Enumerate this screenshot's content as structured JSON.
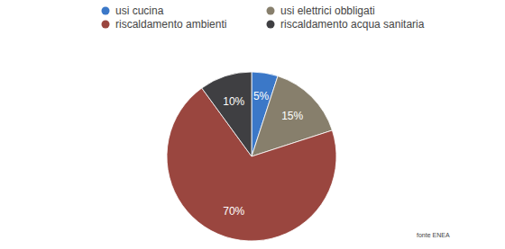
{
  "chart_data": {
    "type": "pie",
    "categories": [
      "usi cucina",
      "usi elettrici obbligati",
      "riscaldamento ambienti",
      "riscaldamento acqua sanitaria"
    ],
    "values": [
      5,
      15,
      70,
      10
    ],
    "value_labels": [
      "5%",
      "15%",
      "70%",
      "10%"
    ],
    "colors": [
      "#3b78c8",
      "#877f6c",
      "#9a463f",
      "#3f3f42"
    ],
    "data_labels": true,
    "legend": "top",
    "annotations": [
      "fonte ENEA"
    ]
  }
}
